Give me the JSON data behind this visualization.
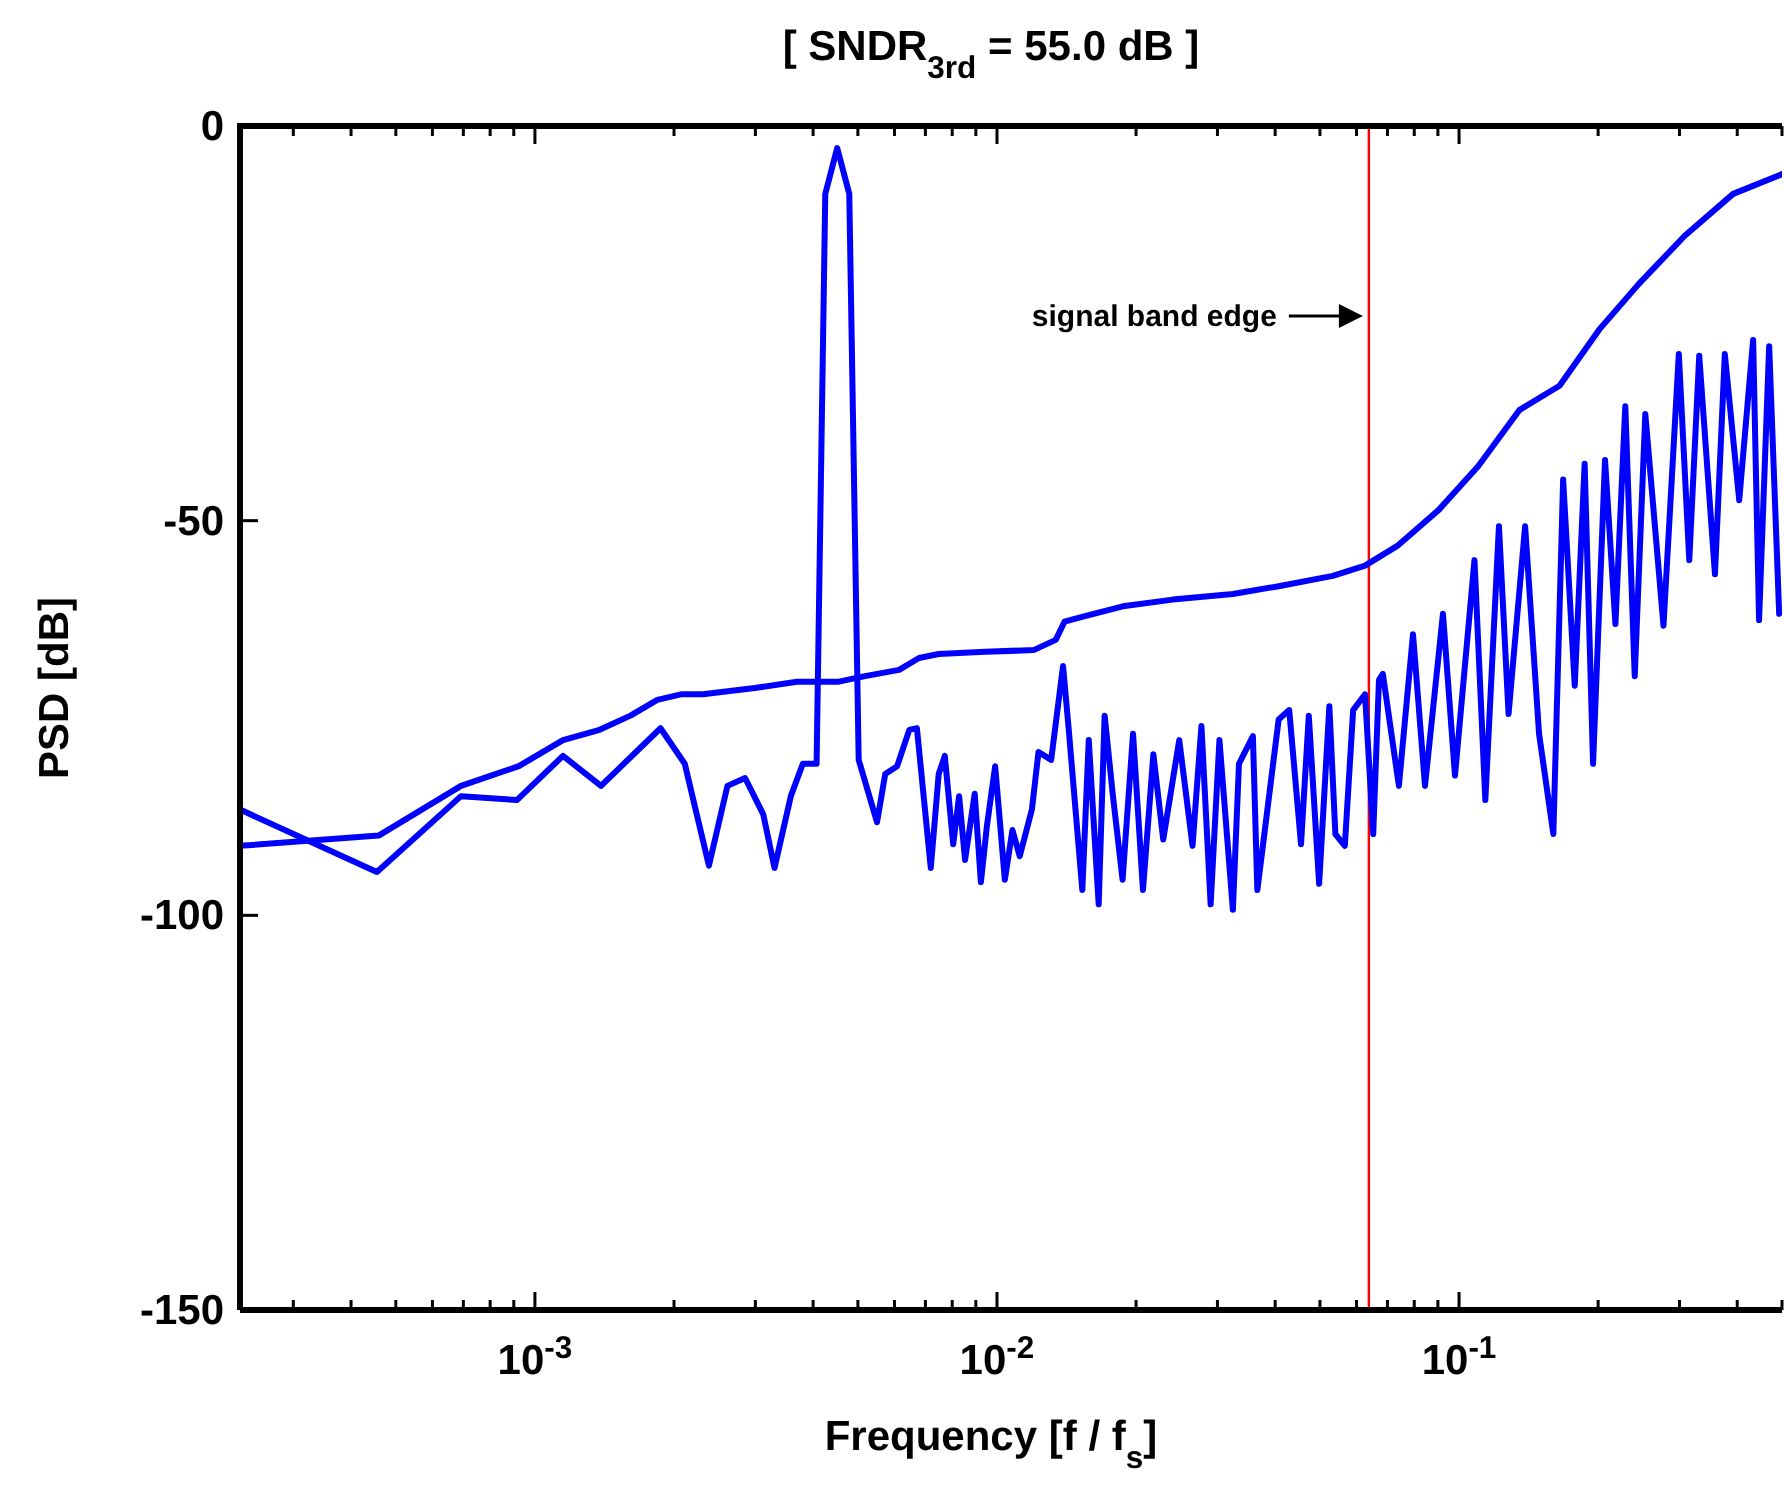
{
  "chart_data": {
    "type": "line",
    "title": "[ SNDR$_{3rd}$ = 55.0 dB ]",
    "xlabel": "Frequency  [f / f$_{s}$]",
    "ylabel": "PSD  [dB]",
    "log": "x",
    "xlim": [
      0.00023,
      0.5
    ],
    "ylim": [
      -150,
      0
    ],
    "yticks": [
      -150,
      -100,
      -50,
      0
    ],
    "xticks": [
      {
        "value": 0.0003,
        "label": null
      },
      {
        "value": 0.0004,
        "label": null
      },
      {
        "value": 0.0005,
        "label": null
      },
      {
        "value": 0.0006,
        "label": null
      },
      {
        "value": 0.0007,
        "label": null
      },
      {
        "value": 0.0008,
        "label": null
      },
      {
        "value": 0.0009,
        "label": null
      },
      {
        "value": 0.001,
        "label": "10$^{-3}$"
      },
      {
        "value": 0.002,
        "label": null
      },
      {
        "value": 0.003,
        "label": null
      },
      {
        "value": 0.004,
        "label": null
      },
      {
        "value": 0.005,
        "label": null
      },
      {
        "value": 0.006,
        "label": null
      },
      {
        "value": 0.007,
        "label": null
      },
      {
        "value": 0.008,
        "label": null
      },
      {
        "value": 0.009,
        "label": null
      },
      {
        "value": 0.01,
        "label": "10$^{-2}$"
      },
      {
        "value": 0.02,
        "label": null
      },
      {
        "value": 0.03,
        "label": null
      },
      {
        "value": 0.04,
        "label": null
      },
      {
        "value": 0.05,
        "label": null
      },
      {
        "value": 0.06,
        "label": null
      },
      {
        "value": 0.07,
        "label": null
      },
      {
        "value": 0.08,
        "label": null
      },
      {
        "value": 0.09,
        "label": null
      },
      {
        "value": 0.1,
        "label": "10$^{-1}$"
      },
      {
        "value": 0.2,
        "label": null
      },
      {
        "value": 0.3,
        "label": null
      },
      {
        "value": 0.4,
        "label": null
      },
      {
        "value": 0.5,
        "label": null
      }
    ],
    "marker": "none",
    "line_style": "solid",
    "series": [
      {
        "color": "#0000ff",
        "x": [
          0.00023,
          0.000459,
          0.000692,
          0.000923,
          0.00115,
          0.00138,
          0.00161,
          0.00184,
          0.00207,
          0.00231,
          0.00299,
          0.00369,
          0.00455,
          0.00518,
          0.00614,
          0.00678,
          0.00748,
          0.00942,
          0.012,
          0.0134,
          0.014,
          0.0155,
          0.0189,
          0.024,
          0.0324,
          0.0407,
          0.0533,
          0.0626,
          0.0735,
          0.0905,
          0.11,
          0.135,
          0.165,
          0.201,
          0.245,
          0.308,
          0.392,
          0.5
        ],
        "values": [
          -91.2,
          -89.9,
          -83.6,
          -81.1,
          -77.8,
          -76.5,
          -74.7,
          -72.7,
          -72,
          -72,
          -71.2,
          -70.4,
          -70.4,
          -69.7,
          -68.9,
          -67.4,
          -66.9,
          -66.6,
          -66.4,
          -65.1,
          -62.8,
          -62.1,
          -60.8,
          -60,
          -59.3,
          -58.3,
          -57,
          -55.7,
          -53.2,
          -48.6,
          -43.1,
          -36,
          -32.9,
          -25.8,
          -20,
          -13.9,
          -8.6,
          -6.1
        ]
      },
      {
        "color": "#0000ff",
        "x": [
          0.00023,
          0.000455,
          0.000692,
          0.000914,
          0.00115,
          0.00139,
          0.00187,
          0.00211,
          0.00238,
          0.00261,
          0.00285,
          0.00312,
          0.0033,
          0.00358,
          0.0038,
          0.00407,
          0.00425,
          0.00451,
          0.00479,
          0.00502,
          0.0055,
          0.00573,
          0.00608,
          0.00646,
          0.00671,
          0.00719,
          0.00748,
          0.00771,
          0.00804,
          0.00828,
          0.00853,
          0.00895,
          0.00923,
          0.00951,
          0.00991,
          0.0104,
          0.0108,
          0.0112,
          0.0119,
          0.0123,
          0.0131,
          0.0139,
          0.0143,
          0.0153,
          0.0158,
          0.0166,
          0.0171,
          0.0178,
          0.0187,
          0.0197,
          0.0207,
          0.0218,
          0.0229,
          0.0248,
          0.0265,
          0.0277,
          0.029,
          0.0303,
          0.0324,
          0.0334,
          0.0358,
          0.0366,
          0.0407,
          0.0429,
          0.0455,
          0.0473,
          0.0498,
          0.0524,
          0.054,
          0.0566,
          0.059,
          0.0626,
          0.0652,
          0.0671,
          0.0684,
          0.0741,
          0.0795,
          0.0844,
          0.0923,
          0.098,
          0.108,
          0.114,
          0.122,
          0.128,
          0.139,
          0.149,
          0.16,
          0.168,
          0.178,
          0.187,
          0.195,
          0.207,
          0.218,
          0.229,
          0.24,
          0.253,
          0.277,
          0.299,
          0.315,
          0.331,
          0.358,
          0.376,
          0.404,
          0.433,
          0.446,
          0.469,
          0.493
        ],
        "values": [
          -86.6,
          -94.5,
          -84.9,
          -85.4,
          -79.8,
          -83.6,
          -76.3,
          -80.8,
          -93.7,
          -83.6,
          -82.6,
          -87.2,
          -94,
          -84.9,
          -80.8,
          -80.8,
          -8.6,
          -2.8,
          -8.6,
          -80.3,
          -88.2,
          -82.1,
          -81.1,
          -76.5,
          -76.3,
          -94,
          -82.1,
          -79.8,
          -91,
          -84.9,
          -93,
          -84.6,
          -95.8,
          -88.7,
          -81.1,
          -95.5,
          -89.2,
          -92.5,
          -86.6,
          -79.3,
          -80.3,
          -68.4,
          -76.5,
          -96.8,
          -77.8,
          -98.6,
          -74.7,
          -84.6,
          -95.5,
          -77,
          -96.8,
          -79.6,
          -90.4,
          -77.8,
          -91.2,
          -76,
          -98.6,
          -77.8,
          -99.3,
          -80.8,
          -77.3,
          -96.8,
          -75.2,
          -74,
          -91,
          -74.7,
          -96,
          -73.5,
          -89.7,
          -91.2,
          -74,
          -72,
          -89.7,
          -70.2,
          -69.4,
          -83.6,
          -64.4,
          -83.6,
          -61.8,
          -82.3,
          -55,
          -85.4,
          -50.7,
          -74.5,
          -50.7,
          -77,
          -89.7,
          -44.8,
          -70.9,
          -42.8,
          -80.8,
          -42.3,
          -63.1,
          -35.5,
          -69.7,
          -36.5,
          -63.3,
          -28.9,
          -55,
          -29.1,
          -56.8,
          -28.9,
          -47.4,
          -27.1,
          -62.6,
          -27.9,
          -61.8
        ]
      }
    ],
    "ref_lines": [
      {
        "axis": "x",
        "value": 0.0638,
        "color": "#ff0000",
        "line_style": "solid"
      }
    ],
    "annotations": [
      "signal band edge"
    ]
  }
}
